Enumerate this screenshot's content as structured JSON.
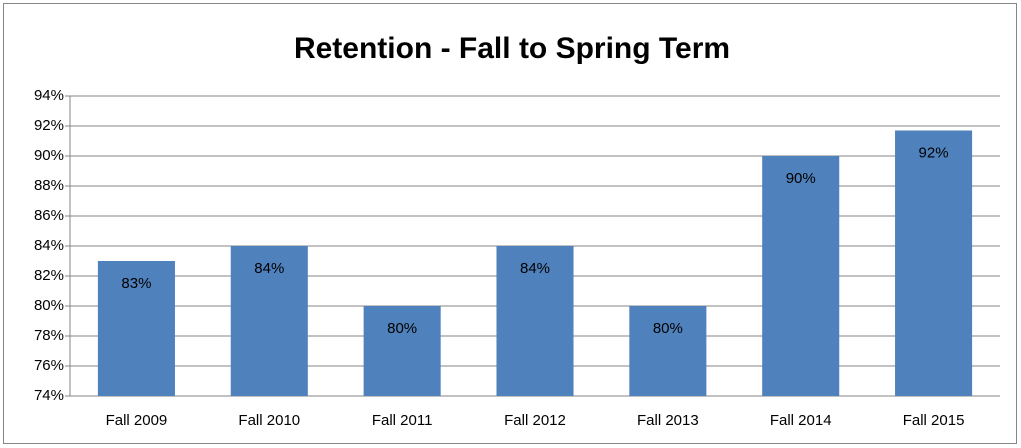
{
  "chart_data": {
    "type": "bar",
    "title": "Retention - Fall to Spring Term",
    "categories": [
      "Fall 2009",
      "Fall 2010",
      "Fall 2011",
      "Fall 2012",
      "Fall 2013",
      "Fall 2014",
      "Fall 2015"
    ],
    "values": [
      83,
      84,
      80,
      84,
      80,
      90,
      91.7
    ],
    "value_labels": [
      "83%",
      "84%",
      "80%",
      "84%",
      "80%",
      "90%",
      "92%"
    ],
    "color": "#4f81bd",
    "ylim": [
      74,
      94
    ],
    "yticks": [
      {
        "value": 74,
        "label": "74%"
      },
      {
        "value": 76,
        "label": "76%"
      },
      {
        "value": 78,
        "label": "78%"
      },
      {
        "value": 80,
        "label": "80%"
      },
      {
        "value": 82,
        "label": "82%"
      },
      {
        "value": 84,
        "label": "84%"
      },
      {
        "value": 86,
        "label": "86%"
      },
      {
        "value": 88,
        "label": "88%"
      },
      {
        "value": 90,
        "label": "90%"
      },
      {
        "value": 92,
        "label": "92%"
      },
      {
        "value": 94,
        "label": "94%"
      }
    ],
    "grid": true
  }
}
